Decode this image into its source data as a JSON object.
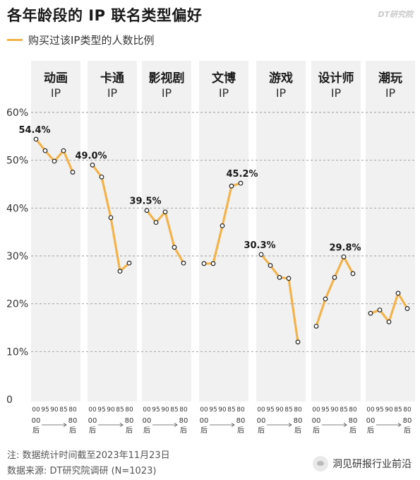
{
  "header": {
    "title": "各年龄段的 IP 联名类型偏好",
    "brand": "DT研究院"
  },
  "legend": {
    "label": "购买过该IP类型的人数比例"
  },
  "colors": {
    "line": "#F3B34C",
    "panel_bg": "#F1F1F1",
    "grid": "#9a9a9a",
    "marker_fill": "#ffffff",
    "marker_stroke": "#222222"
  },
  "chart_data": {
    "type": "line",
    "ylim": [
      0,
      60
    ],
    "y_ticks": [
      "0",
      "10%",
      "20%",
      "30%",
      "40%",
      "50%",
      "60%"
    ],
    "grid": true,
    "x": [
      "00",
      "95",
      "90",
      "85",
      "80"
    ],
    "x_axis_start_label": "00\n后",
    "x_axis_end_label": "80\n后",
    "panels": [
      {
        "label": [
          "动画",
          "IP"
        ],
        "values": [
          54.4,
          52.0,
          49.8,
          52.0,
          47.5
        ],
        "peak_label": "54.4%",
        "peak_index": 0
      },
      {
        "label": [
          "卡通",
          "IP"
        ],
        "values": [
          49.0,
          46.5,
          38.0,
          26.8,
          28.5
        ],
        "peak_label": "49.0%",
        "peak_index": 0
      },
      {
        "label": [
          "影视剧",
          "IP"
        ],
        "values": [
          39.5,
          37.0,
          39.2,
          31.8,
          28.5
        ],
        "peak_label": "39.5%",
        "peak_index": 0
      },
      {
        "label": [
          "文博",
          "IP"
        ],
        "values": [
          28.4,
          28.4,
          36.3,
          44.6,
          45.2
        ],
        "peak_label": "45.2%",
        "peak_index": 4
      },
      {
        "label": [
          "游戏",
          "IP"
        ],
        "values": [
          30.3,
          28.0,
          25.5,
          25.3,
          12.0
        ],
        "peak_label": "30.3%",
        "peak_index": 0
      },
      {
        "label": [
          "设计师",
          "IP"
        ],
        "values": [
          15.3,
          21.0,
          25.5,
          29.8,
          26.3
        ],
        "peak_label": "29.8%",
        "peak_index": 3
      },
      {
        "label": [
          "潮玩",
          "IP"
        ],
        "values": [
          18.0,
          18.7,
          16.2,
          22.2,
          19.0
        ],
        "peak_label": "",
        "peak_index": -1
      }
    ]
  },
  "footer": {
    "note": "注: 数据统计时间截至2023年11月23日",
    "source": "数据来源: DT研究院调研 (N=1023)",
    "watermark": "洞见研报行业前沿"
  }
}
